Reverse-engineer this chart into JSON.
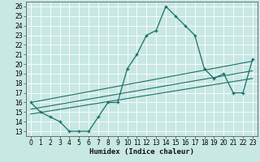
{
  "title": "",
  "xlabel": "Humidex (Indice chaleur)",
  "xlim": [
    -0.5,
    23.5
  ],
  "ylim": [
    12.5,
    26.5
  ],
  "xticks": [
    0,
    1,
    2,
    3,
    4,
    5,
    6,
    7,
    8,
    9,
    10,
    11,
    12,
    13,
    14,
    15,
    16,
    17,
    18,
    19,
    20,
    21,
    22,
    23
  ],
  "yticks": [
    13,
    14,
    15,
    16,
    17,
    18,
    19,
    20,
    21,
    22,
    23,
    24,
    25,
    26
  ],
  "bg_color": "#c8e8e4",
  "line_color": "#1a7068",
  "grid_color": "#ffffff",
  "main_curve_x": [
    0,
    1,
    2,
    3,
    4,
    5,
    6,
    7,
    8,
    9,
    10,
    11,
    12,
    13,
    14,
    15,
    16,
    17,
    18,
    19,
    20,
    21,
    22,
    23
  ],
  "main_curve_y": [
    16,
    15,
    14.5,
    14,
    13,
    13,
    13,
    14.5,
    16,
    16,
    19.5,
    21,
    23,
    23.5,
    26,
    25,
    24,
    23,
    19.5,
    18.5,
    19,
    17,
    17,
    20.5
  ],
  "line1_x": [
    0,
    23
  ],
  "line1_y": [
    16.0,
    20.3
  ],
  "line2_x": [
    0,
    23
  ],
  "line2_y": [
    15.3,
    19.3
  ],
  "line3_x": [
    0,
    23
  ],
  "line3_y": [
    14.8,
    18.5
  ],
  "fontsize_tick": 5.5,
  "fontsize_label": 6.5
}
